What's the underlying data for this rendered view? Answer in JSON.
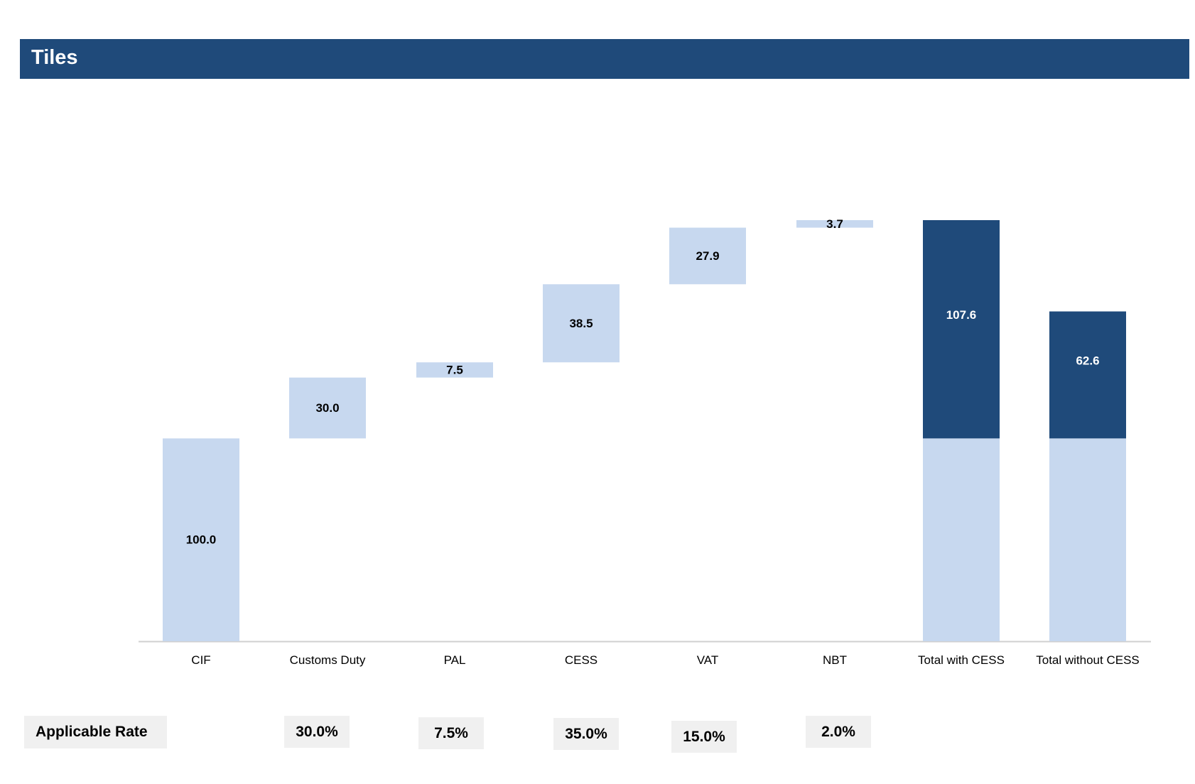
{
  "header": {
    "title": "Tiles"
  },
  "colors": {
    "banner": "#1f4a7a",
    "light_bar": "#c7d8ef",
    "dark_bar": "#1f4a7a",
    "axis": "#d0d0d0"
  },
  "chart_data": {
    "type": "bar",
    "subtype": "waterfall",
    "categories": [
      "CIF",
      "Customs Duty",
      "PAL",
      "CESS",
      "VAT",
      "NBT",
      "Total with CESS",
      "Total without CESS"
    ],
    "values": [
      100.0,
      30.0,
      7.5,
      38.5,
      27.9,
      3.7,
      107.6,
      62.6
    ],
    "labels": [
      "100.0",
      "30.0",
      "7.5",
      "38.5",
      "27.9",
      "3.7",
      "107.6",
      "62.6"
    ],
    "total_base": 100.0,
    "bar_kinds": [
      "increment",
      "increment",
      "increment",
      "increment",
      "increment",
      "increment",
      "total",
      "total"
    ],
    "ylim": [
      0,
      207.6
    ],
    "grid": false,
    "title": "",
    "xlabel": "",
    "ylabel": ""
  },
  "rates": {
    "label": "Applicable Rate",
    "values": [
      "30.0%",
      "7.5%",
      "35.0%",
      "15.0%",
      "2.0%"
    ]
  }
}
